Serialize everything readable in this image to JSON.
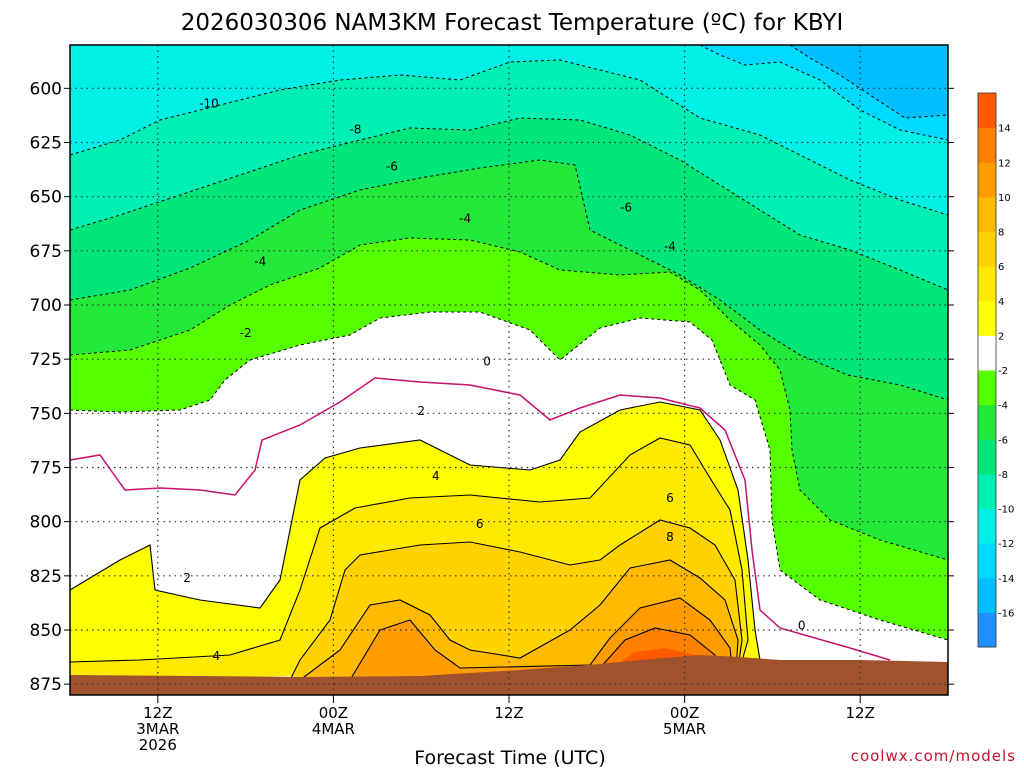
{
  "chart_data": {
    "type": "heatmap",
    "title": "2026030306 NAM3KM Forecast Temperature (ºC) for KBYI",
    "xlabel": "Forecast Time (UTC)",
    "ylabel": "",
    "x_ticks": [
      {
        "hour": 6,
        "lines": [
          "12Z",
          "3MAR",
          "2026"
        ]
      },
      {
        "hour": 18,
        "lines": [
          "00Z",
          "4MAR"
        ]
      },
      {
        "hour": 30,
        "lines": [
          "12Z"
        ]
      },
      {
        "hour": 42,
        "lines": [
          "00Z",
          "5MAR"
        ]
      },
      {
        "hour": 54,
        "lines": [
          "12Z"
        ]
      }
    ],
    "xlim": [
      0,
      60
    ],
    "y_ticks": [
      600,
      625,
      650,
      675,
      700,
      725,
      750,
      775,
      800,
      825,
      850,
      875
    ],
    "ylim": [
      580,
      880
    ],
    "y_inverted": true,
    "grid": true,
    "colorbar": {
      "levels": [
        -18,
        -16,
        -14,
        -12,
        -10,
        -8,
        -6,
        -4,
        -2,
        2,
        4,
        6,
        8,
        10,
        12,
        14,
        16
      ],
      "labels": [
        "-16",
        "-14",
        "-12",
        "-10",
        "-8",
        "-6",
        "-4",
        "-2",
        "2",
        "4",
        "6",
        "8",
        "10",
        "12",
        "14"
      ],
      "colors": [
        "#1e90ff",
        "#00bfff",
        "#00d9ff",
        "#00f0e8",
        "#00f0b4",
        "#00e678",
        "#22e83a",
        "#55ff00",
        "#ffffff",
        "#ffff00",
        "#ffe900",
        "#ffd200",
        "#ffb900",
        "#ff9d00",
        "#ff8000",
        "#ff5a00"
      ]
    },
    "contour_labels": [
      {
        "text": "-10",
        "hour": 9.5,
        "p": 607
      },
      {
        "text": "-8",
        "hour": 19.5,
        "p": 619
      },
      {
        "text": "-6",
        "hour": 22,
        "p": 636
      },
      {
        "text": "-6",
        "hour": 38,
        "p": 655
      },
      {
        "text": "-4",
        "hour": 27,
        "p": 660
      },
      {
        "text": "-4",
        "hour": 13,
        "p": 680
      },
      {
        "text": "-4",
        "hour": 41,
        "p": 673
      },
      {
        "text": "-2",
        "hour": 12,
        "p": 713
      },
      {
        "text": "0",
        "hour": 28.5,
        "p": 726
      },
      {
        "text": "0",
        "hour": 50,
        "p": 848
      },
      {
        "text": "2",
        "hour": 24,
        "p": 749
      },
      {
        "text": "2",
        "hour": 8,
        "p": 826
      },
      {
        "text": "4",
        "hour": 25,
        "p": 779
      },
      {
        "text": "4",
        "hour": 10,
        "p": 862
      },
      {
        "text": "6",
        "hour": 28,
        "p": 801
      },
      {
        "text": "6",
        "hour": 41,
        "p": 789
      },
      {
        "text": "8",
        "hour": 41,
        "p": 807
      }
    ]
  },
  "credit": "coolwx.com/models"
}
